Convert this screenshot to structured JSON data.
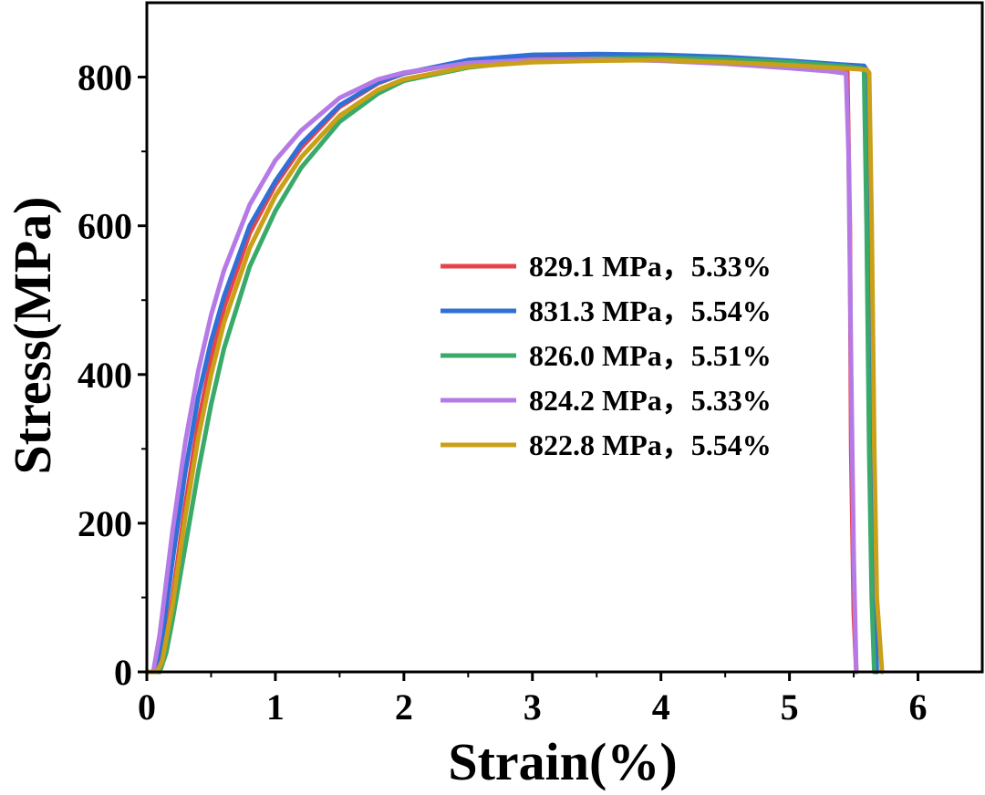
{
  "chart_data": {
    "type": "line",
    "title": "",
    "xlabel": "Strain(%)",
    "ylabel": "Stress(MPa)",
    "xlim": [
      0,
      6.5
    ],
    "ylim": [
      0,
      900
    ],
    "xticks": [
      0,
      1,
      2,
      3,
      4,
      5,
      6
    ],
    "xtick_labels": [
      "0",
      "1",
      "2",
      "3",
      "4",
      "5",
      "6"
    ],
    "yticks": [
      0,
      200,
      400,
      600,
      800
    ],
    "ytick_labels": [
      "0",
      "200",
      "400",
      "600",
      "800"
    ],
    "grid": false,
    "legend_position": "center-right",
    "series": [
      {
        "name": "829.1 MPa，5.33%",
        "color": "#e8434b",
        "x": [
          0,
          0.08,
          0.12,
          0.2,
          0.3,
          0.4,
          0.5,
          0.6,
          0.8,
          1.0,
          1.2,
          1.5,
          1.8,
          2.0,
          2.5,
          3.0,
          3.5,
          4.0,
          4.5,
          5.0,
          5.3,
          5.45,
          5.47,
          5.48,
          5.5,
          5.52
        ],
        "y": [
          0,
          0,
          10,
          100,
          225,
          335,
          420,
          490,
          590,
          655,
          705,
          760,
          792,
          805,
          820,
          828,
          829,
          828,
          824,
          818,
          812,
          808,
          600,
          300,
          80,
          0
        ]
      },
      {
        "name": "831.3 MPa，5.54%",
        "color": "#2f6fd6",
        "x": [
          0,
          0.06,
          0.1,
          0.2,
          0.3,
          0.4,
          0.5,
          0.6,
          0.8,
          1.0,
          1.2,
          1.5,
          1.8,
          2.0,
          2.5,
          3.0,
          3.5,
          4.0,
          4.5,
          5.0,
          5.4,
          5.58,
          5.6,
          5.62,
          5.64,
          5.66,
          5.68
        ],
        "y": [
          0,
          0,
          20,
          150,
          270,
          370,
          445,
          505,
          600,
          660,
          710,
          762,
          793,
          805,
          823,
          830,
          831,
          830,
          827,
          822,
          817,
          815,
          810,
          600,
          300,
          100,
          0
        ]
      },
      {
        "name": "826.0 MPa，5.51%",
        "color": "#3aaa6a",
        "x": [
          0,
          0.1,
          0.15,
          0.2,
          0.3,
          0.4,
          0.5,
          0.6,
          0.8,
          1.0,
          1.2,
          1.5,
          1.8,
          2.0,
          2.5,
          3.0,
          3.5,
          4.0,
          4.5,
          5.0,
          5.4,
          5.56,
          5.58,
          5.6,
          5.62,
          5.64,
          5.66
        ],
        "y": [
          0,
          0,
          25,
          70,
          170,
          270,
          360,
          435,
          545,
          620,
          678,
          740,
          778,
          795,
          813,
          822,
          825,
          826,
          824,
          820,
          815,
          812,
          808,
          600,
          300,
          100,
          0
        ]
      },
      {
        "name": "824.2 MPa，5.33%",
        "color": "#b57ae6",
        "x": [
          0,
          0.05,
          0.1,
          0.2,
          0.3,
          0.4,
          0.5,
          0.6,
          0.8,
          1.0,
          1.2,
          1.5,
          1.8,
          2.0,
          2.5,
          3.0,
          3.5,
          4.0,
          4.5,
          5.0,
          5.3,
          5.44,
          5.46,
          5.48,
          5.5,
          5.52
        ],
        "y": [
          0,
          0,
          50,
          190,
          310,
          405,
          480,
          540,
          628,
          688,
          728,
          772,
          797,
          806,
          819,
          823,
          824,
          822,
          818,
          812,
          808,
          805,
          700,
          400,
          150,
          0
        ]
      },
      {
        "name": "822.8 MPa，5.54%",
        "color": "#c9a016",
        "x": [
          0,
          0.08,
          0.12,
          0.2,
          0.3,
          0.4,
          0.5,
          0.6,
          0.8,
          1.0,
          1.2,
          1.5,
          1.8,
          2.0,
          2.5,
          3.0,
          3.5,
          4.0,
          4.5,
          5.0,
          5.4,
          5.6,
          5.62,
          5.64,
          5.66,
          5.68,
          5.72
        ],
        "y": [
          0,
          0,
          15,
          90,
          210,
          315,
          400,
          470,
          570,
          640,
          692,
          748,
          783,
          797,
          814,
          820,
          822,
          823,
          820,
          816,
          812,
          810,
          806,
          600,
          300,
          100,
          0
        ]
      }
    ]
  }
}
